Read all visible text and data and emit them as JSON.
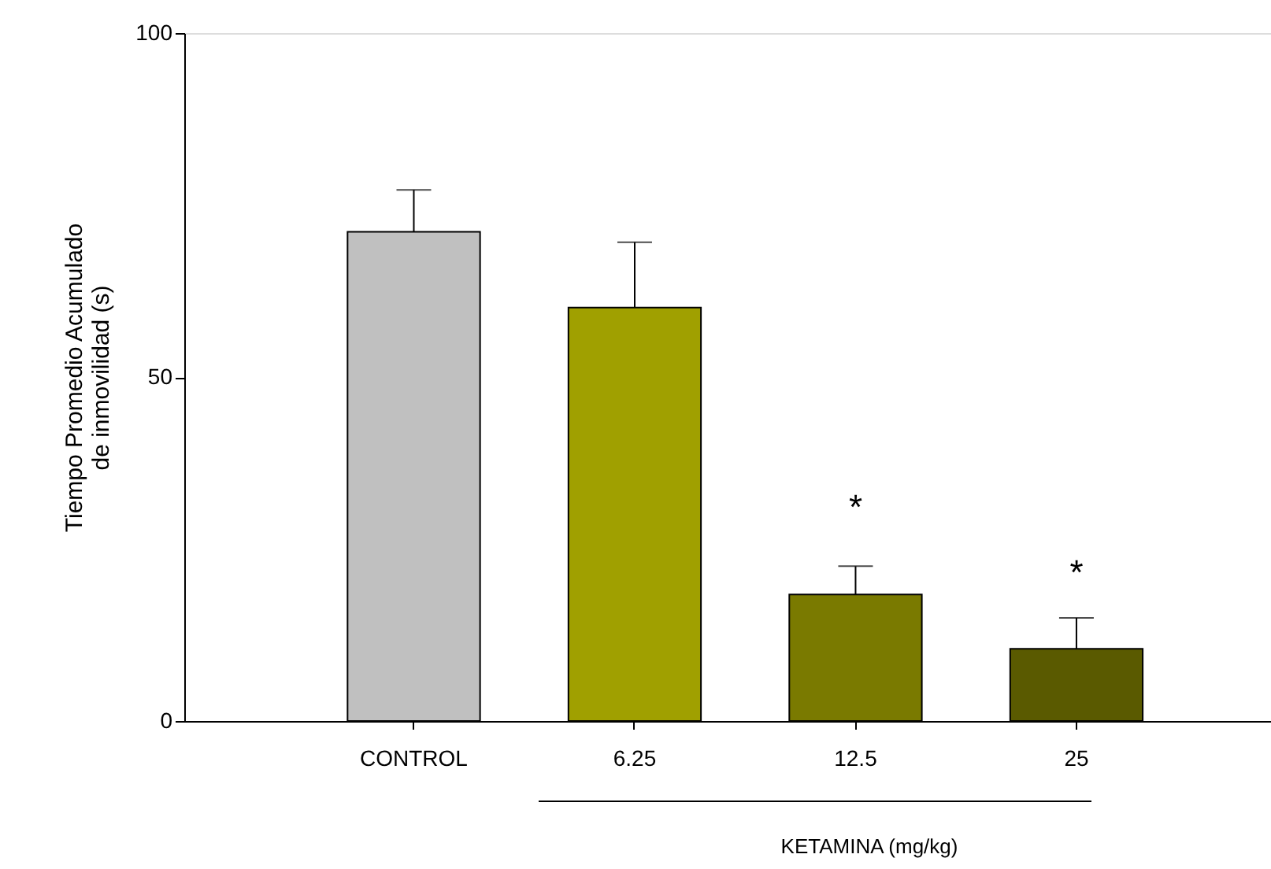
{
  "chart_data": {
    "type": "bar",
    "ylabel": "Tiempo Promedio Acumulado\nde inmovilidad (s)",
    "categories": [
      "CONTROL",
      "6.25",
      "12.5",
      "25"
    ],
    "values": [
      71.1,
      60.1,
      18.4,
      10.5
    ],
    "colors": [
      "#c0c0c0",
      "#a0a000",
      "#7a7a00",
      "#5a5a00"
    ],
    "errors": [
      [
        71.1,
        77.2
      ],
      [
        60.1,
        69.6
      ],
      [
        18.4,
        22.5
      ],
      [
        10.5,
        15.0
      ]
    ],
    "ylim": [
      0,
      100
    ],
    "yticks": [
      0,
      50,
      100
    ],
    "grid": false,
    "annotations": [
      "*",
      "*",
      "KETAMINA (mg/kg)"
    ]
  }
}
